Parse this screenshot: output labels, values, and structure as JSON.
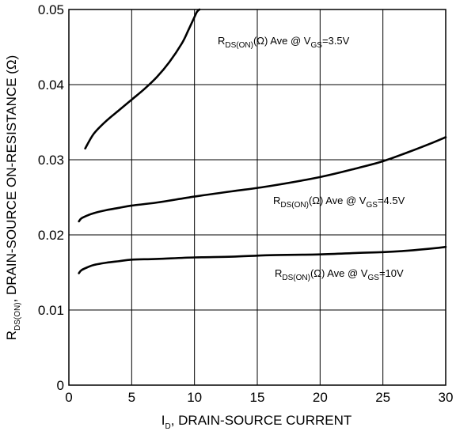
{
  "chart_data": {
    "type": "line",
    "xlabel": {
      "main": "I",
      "sub": "D",
      "rest": ", DRAIN-SOURCE CURRENT"
    },
    "ylabel": {
      "main": "R",
      "sub": "DS(ON)",
      "rest": ", DRAIN-SOURCE ON-RESISTANCE (Ω)"
    },
    "xlim": [
      0,
      30
    ],
    "ylim": [
      0,
      0.05
    ],
    "xticks": [
      "0",
      "5",
      "10",
      "15",
      "20",
      "25",
      "30"
    ],
    "yticks": [
      "0",
      "0.01",
      "0.02",
      "0.03",
      "0.04",
      "0.05"
    ],
    "grid": true,
    "series": [
      {
        "label": {
          "p1": "R",
          "s1": "DS(ON)",
          "p2": "(Ω) Ave @ V",
          "s2": "GS",
          "p3": "=3.5V"
        },
        "x": [
          1.3,
          2,
          3,
          4,
          5,
          6,
          7,
          8,
          9,
          9.5,
          10,
          10.2,
          10.4
        ],
        "y": [
          0.0315,
          0.0335,
          0.0352,
          0.0366,
          0.038,
          0.0394,
          0.041,
          0.043,
          0.0455,
          0.0472,
          0.049,
          0.0497,
          0.05
        ]
      },
      {
        "label": {
          "p1": "R",
          "s1": "DS(ON)",
          "p2": "(Ω) Ave @ V",
          "s2": "GS",
          "p3": "=4.5V"
        },
        "x": [
          0.8,
          1,
          1.5,
          2,
          3,
          4,
          5,
          7,
          10,
          13,
          16,
          20,
          23,
          25,
          27,
          29,
          30
        ],
        "y": [
          0.0218,
          0.0222,
          0.0226,
          0.0229,
          0.0233,
          0.0236,
          0.0239,
          0.0243,
          0.0251,
          0.0258,
          0.0265,
          0.0277,
          0.0289,
          0.0298,
          0.031,
          0.0323,
          0.033
        ]
      },
      {
        "label": {
          "p1": "R",
          "s1": "DS(ON)",
          "p2": "(Ω) Ave @ V",
          "s2": "GS",
          "p3": "=10V"
        },
        "x": [
          0.8,
          1,
          1.5,
          2,
          3,
          4,
          5,
          7,
          10,
          13,
          16,
          20,
          23,
          25,
          27,
          29,
          30
        ],
        "y": [
          0.0149,
          0.0153,
          0.0157,
          0.016,
          0.0163,
          0.0165,
          0.0167,
          0.0168,
          0.017,
          0.0171,
          0.0173,
          0.0174,
          0.0176,
          0.0177,
          0.0179,
          0.0182,
          0.0184
        ]
      }
    ]
  }
}
